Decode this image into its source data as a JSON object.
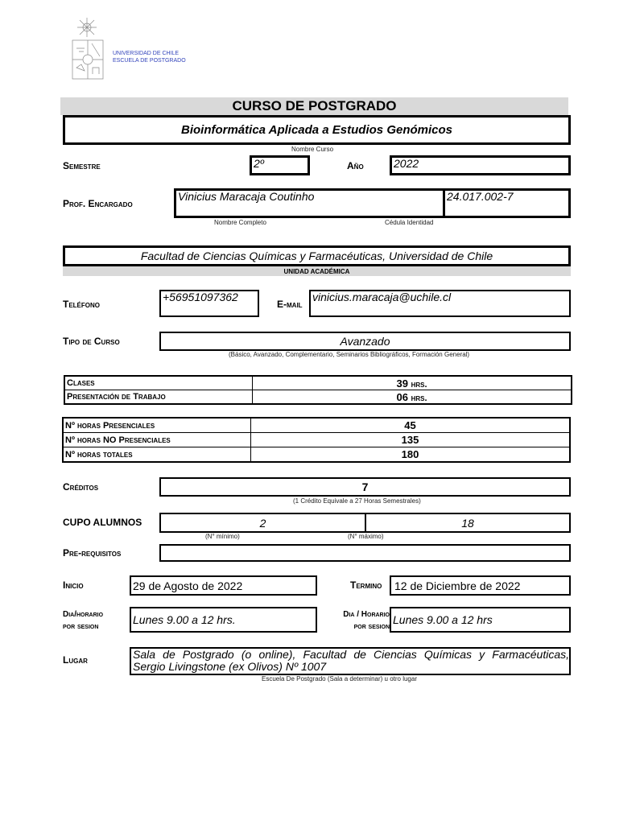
{
  "header": {
    "logo_line1": "UNIVERSIDAD DE CHILE",
    "logo_line2": "ESCUELA DE POSTGRADO",
    "title": "CURSO  DE  POSTGRADO"
  },
  "course": {
    "name": "Bioinformática Aplicada a Estudios Genómicos",
    "name_caption": "Nombre  Curso"
  },
  "semestre": {
    "label": "Semestre",
    "value": "2º"
  },
  "anio": {
    "label": "Año",
    "value": "2022"
  },
  "profesor": {
    "label": "Prof. Encargado",
    "name": "Vinicius Maracaja Coutinho",
    "rut": "24.017.002-7",
    "name_caption": "Nombre Completo",
    "rut_caption": "Cédula Identidad"
  },
  "unidad": {
    "value": "Facultad de Ciencias Químicas y Farmacéuticas, Universidad de Chile",
    "caption": "UNIDAD  ACADÉMICA"
  },
  "telefono": {
    "label": "Teléfono",
    "value": "+56951097362"
  },
  "email": {
    "label": "E-mail",
    "value": "vinicius.maracaja@uchile.cl"
  },
  "tipo": {
    "label": "Tipo de Curso",
    "value": "Avanzado",
    "caption": "(Básico, Avanzado, Complementario, Seminarios Bibliográficos, Formación General)"
  },
  "horas1": [
    {
      "label": "Clases",
      "value": "39",
      "unit": "hrs."
    },
    {
      "label": "Presentación  de Trabajo",
      "value": "06",
      "unit": "hrs."
    }
  ],
  "horas2": [
    {
      "label": "Nº horas Presenciales",
      "value": "45"
    },
    {
      "label": "Nº horas NO Presenciales",
      "value": "135"
    },
    {
      "label": "Nº horas totales",
      "value": "180"
    }
  ],
  "creditos": {
    "label": "Créditos",
    "value": "7",
    "caption": "(1 Crédito Equivale a 27 Horas Semestrales)"
  },
  "cupo": {
    "label": "CUPO ALUMNOS",
    "min": "2",
    "max": "18",
    "min_caption": "(N° mínimo)",
    "max_caption": "(N° máximo)"
  },
  "prerequisitos": {
    "label": "Pre-requisitos",
    "value": ""
  },
  "inicio": {
    "label": "Inicio",
    "value": "29 de Agosto de 2022"
  },
  "termino": {
    "label": "Termino",
    "value": "12 de Diciembre de 2022"
  },
  "horario1": {
    "label1": "Dia/horario",
    "label2": "por sesion",
    "value": "Lunes 9.00 a 12 hrs."
  },
  "horario2": {
    "label1": "Dia / Horario",
    "label2": "por sesion",
    "value": "Lunes 9.00 a 12 hrs"
  },
  "lugar": {
    "label": "Lugar",
    "line1": "Sala de Postgrado (o online), Facultad de  Ciencias Químicas y Farmacéuticas,",
    "line2": "Sergio Livingstone (ex Olivos) Nº 1007",
    "caption": "Escuela De Postgrado (Sala a determinar) u otro lugar"
  }
}
